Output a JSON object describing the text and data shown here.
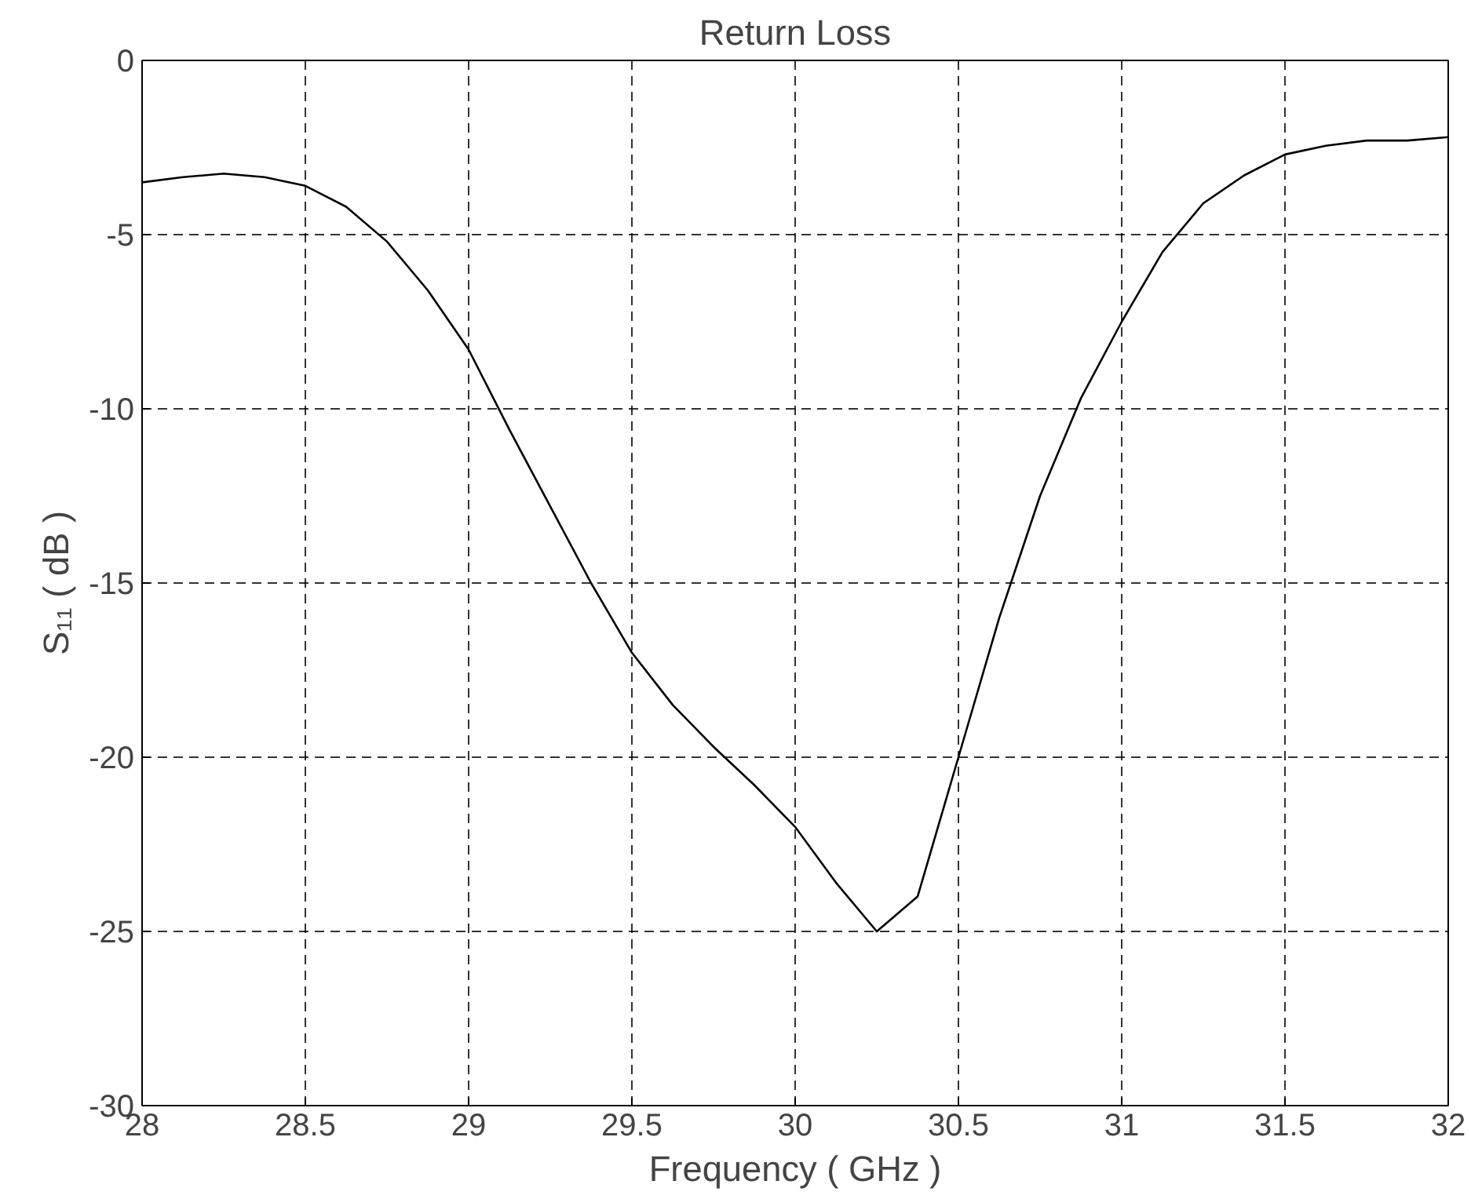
{
  "chart_data": {
    "type": "line",
    "title": "Return Loss",
    "xlabel": "Frequency ( GHz )",
    "ylabel": "S₁₁ ( dB )",
    "x": [
      28,
      28.125,
      28.25,
      28.375,
      28.5,
      28.625,
      28.75,
      28.875,
      29,
      29.125,
      29.25,
      29.375,
      29.5,
      29.625,
      29.75,
      29.875,
      30,
      30.125,
      30.25,
      30.375,
      30.5,
      30.625,
      30.75,
      30.875,
      31,
      31.125,
      31.25,
      31.375,
      31.5,
      31.625,
      31.75,
      31.875,
      32
    ],
    "series": [
      {
        "color": "#000000",
        "values": [
          -3.5,
          -3.35,
          -3.25,
          -3.35,
          -3.6,
          -4.2,
          -5.2,
          -6.6,
          -8.3,
          -10.6,
          -12.8,
          -15,
          -17,
          -18.5,
          -19.7,
          -20.8,
          -22,
          -23.6,
          -25,
          -24,
          -20,
          -16,
          -12.5,
          -9.7,
          -7.5,
          -5.5,
          -4.1,
          -3.3,
          -2.7,
          -2.45,
          -2.3,
          -2.3,
          -2.2
        ]
      }
    ],
    "xlim": [
      28,
      32
    ],
    "ylim": [
      -30,
      0
    ],
    "xticks": [
      28,
      28.5,
      29,
      29.5,
      30,
      30.5,
      31,
      31.5,
      32
    ],
    "yticks": [
      -30,
      -25,
      -20,
      -15,
      -10,
      -5,
      0
    ],
    "grid": true,
    "line_style": "solid"
  }
}
